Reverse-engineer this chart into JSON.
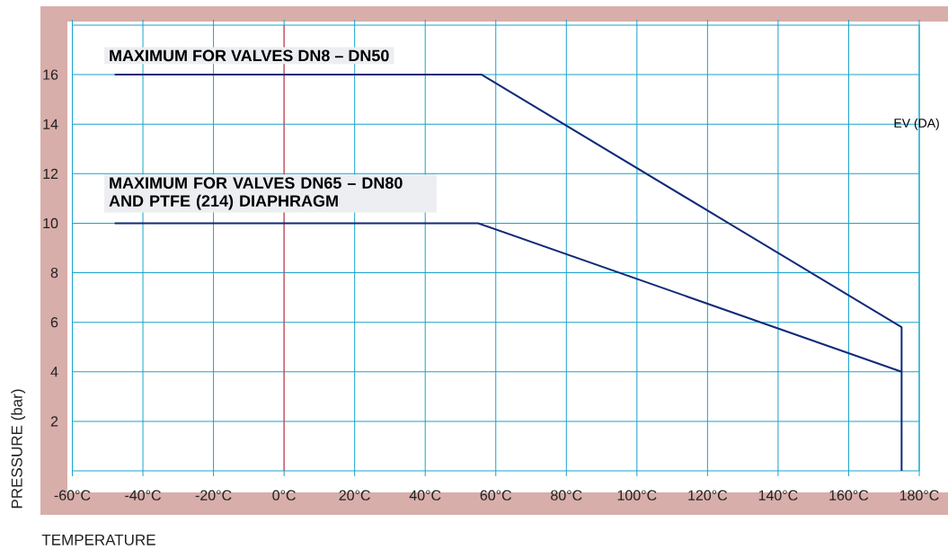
{
  "chart_data": {
    "type": "line",
    "xlabel": "TEMPERATURE",
    "ylabel": "PRESSURE (bar)",
    "xlim": [
      -60,
      180
    ],
    "ylim": [
      0,
      18
    ],
    "xticks": [
      {
        "value": -60,
        "label": "-60°C"
      },
      {
        "value": -40,
        "label": "-40°C"
      },
      {
        "value": -20,
        "label": "-20°C"
      },
      {
        "value": 0,
        "label": "0°C"
      },
      {
        "value": 20,
        "label": "20°C"
      },
      {
        "value": 40,
        "label": "40°C"
      },
      {
        "value": 60,
        "label": "60°C"
      },
      {
        "value": 80,
        "label": "80°C"
      },
      {
        "value": 100,
        "label": "100°C"
      },
      {
        "value": 120,
        "label": "120°C"
      },
      {
        "value": 140,
        "label": "140°C"
      },
      {
        "value": 160,
        "label": "160°C"
      },
      {
        "value": 180,
        "label": "180°C"
      }
    ],
    "yticks": [
      2,
      4,
      6,
      8,
      10,
      12,
      14,
      16
    ],
    "grid": true,
    "series": [
      {
        "color": "#102a78",
        "x": [
          -48,
          56,
          175,
          175
        ],
        "values": [
          16,
          16,
          5.8,
          0
        ]
      },
      {
        "color": "#102a78",
        "x": [
          -48,
          55,
          175
        ],
        "values": [
          10,
          10,
          4
        ]
      }
    ],
    "ref_lines": [
      {
        "axis": "x",
        "value": 0,
        "color": "#ff3333"
      }
    ],
    "annotations": [
      "MAXIMUM FOR VALVES DN8 – DN50",
      "MAXIMUM FOR VALVES DN65 – DN80 AND PTFE (214) DIAPHRAGM",
      "EV (DA)"
    ]
  }
}
